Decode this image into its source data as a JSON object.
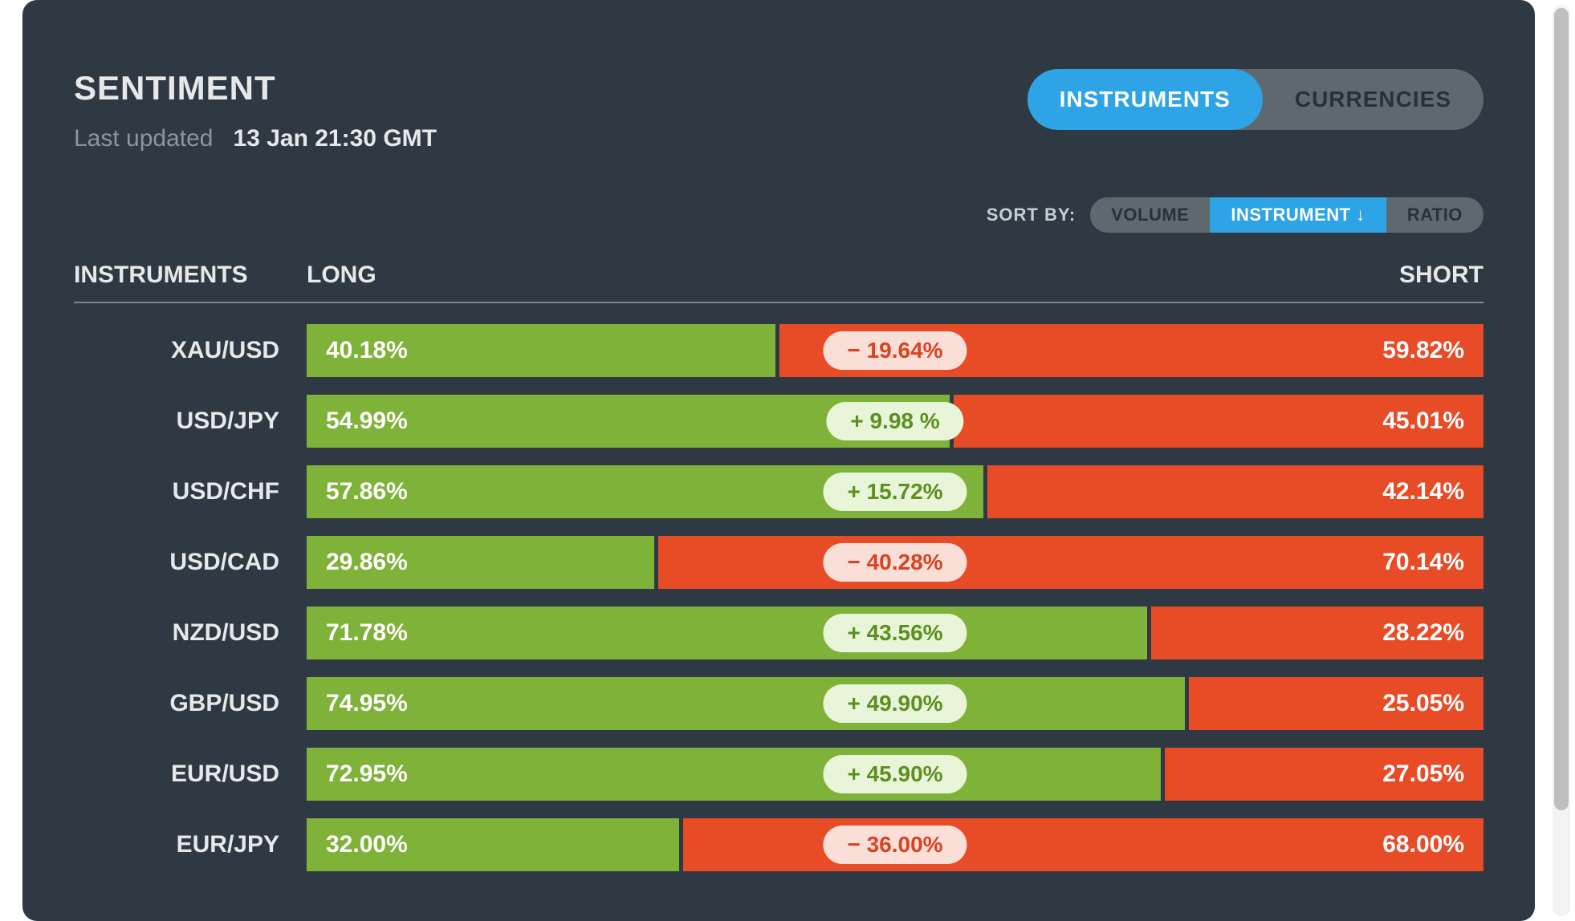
{
  "colors": {
    "panel_bg": "#2f3943",
    "text_light": "#e6e8ea",
    "text_muted": "#8d949c",
    "accent_blue": "#2ea3e6",
    "toggle_gray": "#60686f",
    "long_green": "#7eb238",
    "short_red": "#e84c27",
    "pill_green_bg": "#e8f5d9",
    "pill_green_text": "#5d8f1f",
    "pill_red_bg": "#fadfd9",
    "pill_red_text": "#d9431f"
  },
  "header": {
    "title": "SENTIMENT",
    "updated_label": "Last updated",
    "updated_value": "13 Jan 21:30 GMT"
  },
  "view_tabs": {
    "instruments": "INSTRUMENTS",
    "currencies": "CURRENCIES",
    "active": "instruments"
  },
  "sort": {
    "label": "SORT BY:",
    "options": {
      "volume": "VOLUME",
      "instrument": "INSTRUMENT ↓",
      "ratio": "RATIO"
    },
    "active": "instrument"
  },
  "columns": {
    "instruments": "INSTRUMENTS",
    "long": "LONG",
    "short": "SHORT"
  },
  "rows": [
    {
      "name": "XAU/USD",
      "long": 40.18,
      "short": 59.82,
      "delta": -19.64,
      "delta_text": "− 19.64%"
    },
    {
      "name": "USD/JPY",
      "long": 54.99,
      "short": 45.01,
      "delta": 9.98,
      "delta_text": "+  9.98 %"
    },
    {
      "name": "USD/CHF",
      "long": 57.86,
      "short": 42.14,
      "delta": 15.72,
      "delta_text": "+ 15.72%"
    },
    {
      "name": "USD/CAD",
      "long": 29.86,
      "short": 70.14,
      "delta": -40.28,
      "delta_text": "− 40.28%"
    },
    {
      "name": "NZD/USD",
      "long": 71.78,
      "short": 28.22,
      "delta": 43.56,
      "delta_text": "+ 43.56%"
    },
    {
      "name": "GBP/USD",
      "long": 74.95,
      "short": 25.05,
      "delta": 49.9,
      "delta_text": "+ 49.90%"
    },
    {
      "name": "EUR/USD",
      "long": 72.95,
      "short": 27.05,
      "delta": 45.9,
      "delta_text": "+ 45.90%"
    },
    {
      "name": "EUR/JPY",
      "long": 32.0,
      "short": 68.0,
      "delta": -36.0,
      "delta_text": "− 36.00%"
    }
  ],
  "fmt": {
    "pct_suffix": "%"
  }
}
